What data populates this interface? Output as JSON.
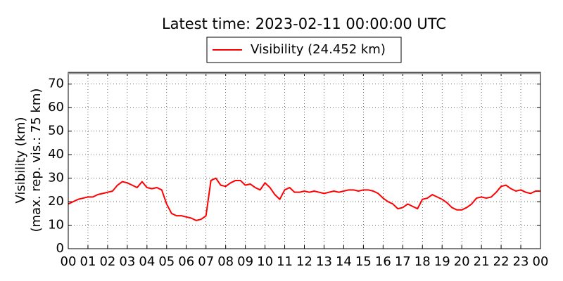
{
  "chart_data": {
    "type": "line",
    "title": "Latest time: 2023-02-11 00:00:00 UTC",
    "ylabel": [
      "Visibility (km)",
      "(max. rep. vis.: 75 km)"
    ],
    "xlim": [
      0,
      24
    ],
    "ylim": [
      0,
      75
    ],
    "xticks": [
      {
        "value": 0,
        "label": "00"
      },
      {
        "value": 1,
        "label": "01"
      },
      {
        "value": 2,
        "label": "02"
      },
      {
        "value": 3,
        "label": "03"
      },
      {
        "value": 4,
        "label": "04"
      },
      {
        "value": 5,
        "label": "05"
      },
      {
        "value": 6,
        "label": "06"
      },
      {
        "value": 7,
        "label": "07"
      },
      {
        "value": 8,
        "label": "08"
      },
      {
        "value": 9,
        "label": "09"
      },
      {
        "value": 10,
        "label": "10"
      },
      {
        "value": 11,
        "label": "11"
      },
      {
        "value": 12,
        "label": "12"
      },
      {
        "value": 13,
        "label": "13"
      },
      {
        "value": 14,
        "label": "14"
      },
      {
        "value": 15,
        "label": "15"
      },
      {
        "value": 16,
        "label": "16"
      },
      {
        "value": 17,
        "label": "17"
      },
      {
        "value": 18,
        "label": "18"
      },
      {
        "value": 19,
        "label": "19"
      },
      {
        "value": 20,
        "label": "20"
      },
      {
        "value": 21,
        "label": "21"
      },
      {
        "value": 22,
        "label": "22"
      },
      {
        "value": 23,
        "label": "23"
      },
      {
        "value": 24,
        "label": "00"
      }
    ],
    "yticks": [
      0,
      10,
      20,
      30,
      40,
      50,
      60,
      70
    ],
    "grid": true,
    "legend": "top",
    "x": [
      0,
      0.25,
      0.5,
      0.75,
      1,
      1.25,
      1.5,
      1.75,
      2,
      2.25,
      2.5,
      2.75,
      3,
      3.25,
      3.5,
      3.75,
      4,
      4.25,
      4.5,
      4.75,
      5,
      5.25,
      5.5,
      5.75,
      6,
      6.25,
      6.5,
      6.75,
      7,
      7.25,
      7.5,
      7.75,
      8,
      8.25,
      8.5,
      8.75,
      9,
      9.25,
      9.5,
      9.75,
      10,
      10.25,
      10.5,
      10.75,
      11,
      11.25,
      11.5,
      11.75,
      12,
      12.25,
      12.5,
      12.75,
      13,
      13.25,
      13.5,
      13.75,
      14,
      14.25,
      14.5,
      14.75,
      15,
      15.25,
      15.5,
      15.75,
      16,
      16.25,
      16.5,
      16.75,
      17,
      17.25,
      17.5,
      17.75,
      18,
      18.25,
      18.5,
      18.75,
      19,
      19.25,
      19.5,
      19.75,
      20,
      20.25,
      20.5,
      20.75,
      21,
      21.25,
      21.5,
      21.75,
      22,
      22.25,
      22.5,
      22.75,
      23,
      23.25,
      23.5,
      23.75,
      24
    ],
    "series": [
      {
        "name": "Visibility (24.452 km)",
        "color": "#ff0000",
        "values": [
          19,
          20,
          21,
          21.5,
          22,
          22,
          23,
          23.5,
          24,
          24.5,
          27,
          28.5,
          28,
          27,
          26,
          28.5,
          26,
          25.5,
          26,
          25,
          19,
          15,
          14,
          14,
          13.5,
          13,
          12,
          12.5,
          14,
          29,
          30,
          27,
          26.5,
          28,
          29,
          29,
          27,
          27.5,
          26,
          25,
          28,
          26,
          23,
          21,
          25,
          26,
          24,
          24,
          24.5,
          24,
          24.5,
          24,
          23.5,
          24,
          24.5,
          24,
          24.5,
          25,
          25,
          24.5,
          25,
          25,
          24.5,
          23.5,
          21.5,
          20,
          19,
          17,
          17.5,
          19,
          18,
          17,
          21,
          21.5,
          23,
          22,
          21,
          19.5,
          17.5,
          16.5,
          16.5,
          17.5,
          19,
          21.5,
          22,
          21.5,
          22,
          24,
          26.5,
          27,
          25.5,
          24.5,
          25,
          24,
          23.5,
          24.5,
          24.5
        ]
      }
    ]
  }
}
